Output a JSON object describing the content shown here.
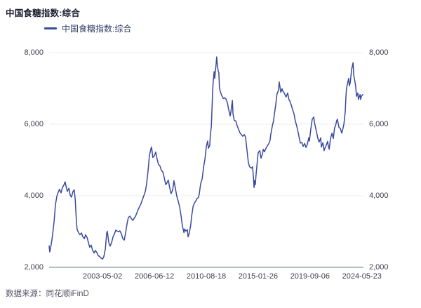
{
  "header": {
    "title": "中国食糖指数:综合"
  },
  "legend": {
    "label": "中国食糖指数:综合"
  },
  "footer": {
    "source": "数据来源：同花顺iFinD"
  },
  "chart_data": {
    "type": "line",
    "title": "中国食糖指数:综合",
    "grid": "horizontal",
    "legend_position": "top-left",
    "ylim": [
      2000,
      8000
    ],
    "colors": {
      "line": "#3A4A9E",
      "gridline": "#ececf1",
      "axis_line": "#b6bcc9",
      "tick_text": "#3d3d4f"
    },
    "y_ticks": [
      {
        "value": 2000,
        "label": "2,000"
      },
      {
        "value": 4000,
        "label": "4,000"
      },
      {
        "value": 6000,
        "label": "6,000"
      },
      {
        "value": 8000,
        "label": "8,000"
      }
    ],
    "x_ticks": [
      {
        "pct": 17.0,
        "label": "2003-05-02"
      },
      {
        "pct": 33.5,
        "label": "2006-06-12"
      },
      {
        "pct": 50.0,
        "label": "2010-08-18"
      },
      {
        "pct": 66.5,
        "label": "2015-01-26"
      },
      {
        "pct": 83.0,
        "label": "2019-09-06"
      },
      {
        "pct": 99.5,
        "label": "2024-05-23"
      }
    ],
    "series": [
      {
        "name": "中国食糖指数:综合",
        "color": "#3A4A9E",
        "points": [
          [
            0,
            2600
          ],
          [
            0.2,
            2430
          ],
          [
            0.7,
            2650
          ],
          [
            1.1,
            2900
          ],
          [
            1.6,
            3300
          ],
          [
            2,
            3750
          ],
          [
            2.5,
            4000
          ],
          [
            2.9,
            4100
          ],
          [
            3.3,
            4180
          ],
          [
            3.8,
            4080
          ],
          [
            4.2,
            4220
          ],
          [
            4.7,
            4300
          ],
          [
            5.1,
            4390
          ],
          [
            5.4,
            4260
          ],
          [
            5.8,
            4120
          ],
          [
            6.3,
            4210
          ],
          [
            6.7,
            4020
          ],
          [
            7.1,
            3960
          ],
          [
            7.6,
            4120
          ],
          [
            8,
            4160
          ],
          [
            8.3,
            3900
          ],
          [
            8.7,
            3250
          ],
          [
            8.9,
            3060
          ],
          [
            9.4,
            2960
          ],
          [
            9.8,
            2910
          ],
          [
            10.3,
            2960
          ],
          [
            10.7,
            2860
          ],
          [
            11.2,
            2800
          ],
          [
            11.6,
            2910
          ],
          [
            12.1,
            2830
          ],
          [
            12.5,
            2690
          ],
          [
            12.9,
            2560
          ],
          [
            13.4,
            2620
          ],
          [
            13.8,
            2480
          ],
          [
            14.3,
            2400
          ],
          [
            14.7,
            2470
          ],
          [
            15.2,
            2410
          ],
          [
            15.6,
            2330
          ],
          [
            16.1,
            2300
          ],
          [
            16.5,
            2260
          ],
          [
            17,
            2230
          ],
          [
            17.4,
            2300
          ],
          [
            17.9,
            2520
          ],
          [
            18.3,
            2950
          ],
          [
            18.5,
            3010
          ],
          [
            19,
            2690
          ],
          [
            19.4,
            2590
          ],
          [
            19.9,
            2700
          ],
          [
            20.3,
            2840
          ],
          [
            20.8,
            2940
          ],
          [
            21.2,
            3040
          ],
          [
            21.7,
            3010
          ],
          [
            22.1,
            2990
          ],
          [
            22.5,
            3020
          ],
          [
            23,
            2940
          ],
          [
            23.4,
            2810
          ],
          [
            23.9,
            2760
          ],
          [
            24.3,
            2950
          ],
          [
            24.8,
            3220
          ],
          [
            25.2,
            3390
          ],
          [
            25.7,
            3430
          ],
          [
            26.1,
            3370
          ],
          [
            26.6,
            3310
          ],
          [
            27,
            3360
          ],
          [
            27.5,
            3430
          ],
          [
            27.9,
            3520
          ],
          [
            28.3,
            3610
          ],
          [
            28.8,
            3700
          ],
          [
            29.2,
            3770
          ],
          [
            29.7,
            3900
          ],
          [
            30.1,
            3990
          ],
          [
            30.6,
            4120
          ],
          [
            31,
            4320
          ],
          [
            31.5,
            4720
          ],
          [
            31.9,
            5120
          ],
          [
            32.4,
            5320
          ],
          [
            32.6,
            5360
          ],
          [
            33,
            5070
          ],
          [
            33.5,
            5120
          ],
          [
            33.9,
            5220
          ],
          [
            34.4,
            5010
          ],
          [
            34.8,
            4870
          ],
          [
            35.3,
            4830
          ],
          [
            35.7,
            4710
          ],
          [
            36.2,
            4660
          ],
          [
            36.6,
            4510
          ],
          [
            37.1,
            4310
          ],
          [
            37.5,
            4360
          ],
          [
            37.9,
            4440
          ],
          [
            38.4,
            4210
          ],
          [
            38.8,
            4060
          ],
          [
            39.3,
            4160
          ],
          [
            39.7,
            4420
          ],
          [
            40.2,
            4190
          ],
          [
            40.6,
            3990
          ],
          [
            41.1,
            3840
          ],
          [
            41.5,
            3700
          ],
          [
            42,
            3420
          ],
          [
            42.4,
            3150
          ],
          [
            42.9,
            2970
          ],
          [
            43.1,
            3070
          ],
          [
            43.5,
            3010
          ],
          [
            44,
            3050
          ],
          [
            44.2,
            2850
          ],
          [
            44.6,
            2950
          ],
          [
            45.1,
            3210
          ],
          [
            45.3,
            3400
          ],
          [
            45.8,
            3700
          ],
          [
            46.2,
            3790
          ],
          [
            46.7,
            3860
          ],
          [
            47.1,
            3930
          ],
          [
            47.5,
            3950
          ],
          [
            47.8,
            4060
          ],
          [
            48.2,
            4330
          ],
          [
            48.7,
            4480
          ],
          [
            49.1,
            4780
          ],
          [
            49.6,
            5040
          ],
          [
            50,
            5360
          ],
          [
            50.4,
            5530
          ],
          [
            50.7,
            5330
          ],
          [
            51.1,
            5400
          ],
          [
            51.3,
            5700
          ],
          [
            51.6,
            5940
          ],
          [
            51.8,
            6400
          ],
          [
            52,
            6900
          ],
          [
            52.2,
            7200
          ],
          [
            52.5,
            7470
          ],
          [
            52.7,
            7280
          ],
          [
            52.9,
            7500
          ],
          [
            53.1,
            7650
          ],
          [
            53.3,
            7880
          ],
          [
            53.6,
            7600
          ],
          [
            53.8,
            7480
          ],
          [
            54,
            7440
          ],
          [
            54.2,
            7000
          ],
          [
            54.5,
            6900
          ],
          [
            54.9,
            6800
          ],
          [
            55.4,
            6720
          ],
          [
            55.8,
            6740
          ],
          [
            56.3,
            6700
          ],
          [
            56.7,
            6600
          ],
          [
            57.1,
            6420
          ],
          [
            57.6,
            6230
          ],
          [
            57.8,
            6320
          ],
          [
            58.3,
            6660
          ],
          [
            58.5,
            6280
          ],
          [
            58.9,
            6100
          ],
          [
            59.4,
            6090
          ],
          [
            59.8,
            5960
          ],
          [
            60.3,
            5850
          ],
          [
            60.7,
            5760
          ],
          [
            61.2,
            5700
          ],
          [
            61.6,
            5660
          ],
          [
            62.1,
            5710
          ],
          [
            62.5,
            5640
          ],
          [
            62.9,
            5310
          ],
          [
            63.4,
            4920
          ],
          [
            63.8,
            4810
          ],
          [
            64.3,
            4770
          ],
          [
            64.7,
            4810
          ],
          [
            65,
            4520
          ],
          [
            65.2,
            4230
          ],
          [
            65.4,
            4420
          ],
          [
            65.6,
            4310
          ],
          [
            65.8,
            4560
          ],
          [
            66.3,
            5020
          ],
          [
            66.5,
            5200
          ],
          [
            67,
            5260
          ],
          [
            67.4,
            5050
          ],
          [
            67.9,
            5180
          ],
          [
            68.1,
            5300
          ],
          [
            68.5,
            5230
          ],
          [
            69,
            5330
          ],
          [
            69.4,
            5390
          ],
          [
            69.9,
            5460
          ],
          [
            70.3,
            5550
          ],
          [
            70.5,
            5700
          ],
          [
            71,
            5950
          ],
          [
            71.4,
            6100
          ],
          [
            71.7,
            6300
          ],
          [
            72.1,
            6550
          ],
          [
            72.5,
            6850
          ],
          [
            73,
            6950
          ],
          [
            73.2,
            7180
          ],
          [
            73.7,
            6890
          ],
          [
            74.1,
            6990
          ],
          [
            74.3,
            6930
          ],
          [
            74.8,
            6870
          ],
          [
            75.2,
            6790
          ],
          [
            75.4,
            6760
          ],
          [
            75.9,
            6870
          ],
          [
            76.3,
            6690
          ],
          [
            76.6,
            6640
          ],
          [
            77,
            6540
          ],
          [
            77.5,
            6400
          ],
          [
            77.9,
            6290
          ],
          [
            78.3,
            6100
          ],
          [
            78.8,
            5940
          ],
          [
            79.2,
            5780
          ],
          [
            79.7,
            5560
          ],
          [
            79.9,
            5470
          ],
          [
            80.4,
            5490
          ],
          [
            80.8,
            5380
          ],
          [
            81.3,
            5460
          ],
          [
            81.7,
            5350
          ],
          [
            82.1,
            5420
          ],
          [
            82.6,
            5620
          ],
          [
            82.8,
            5530
          ],
          [
            83.3,
            5900
          ],
          [
            83.7,
            6140
          ],
          [
            84.2,
            6200
          ],
          [
            84.4,
            6050
          ],
          [
            84.8,
            5890
          ],
          [
            85.3,
            5690
          ],
          [
            85.5,
            5600
          ],
          [
            85.9,
            5500
          ],
          [
            86.4,
            5620
          ],
          [
            86.6,
            5360
          ],
          [
            87.1,
            5480
          ],
          [
            87.5,
            5260
          ],
          [
            87.7,
            5320
          ],
          [
            88.2,
            5420
          ],
          [
            88.6,
            5520
          ],
          [
            88.8,
            5400
          ],
          [
            89.1,
            5300
          ],
          [
            89.5,
            5600
          ],
          [
            90,
            5750
          ],
          [
            90.4,
            5600
          ],
          [
            90.8,
            5890
          ],
          [
            91.1,
            5950
          ],
          [
            91.5,
            6100
          ],
          [
            91.7,
            6140
          ],
          [
            92.2,
            5910
          ],
          [
            92.6,
            5890
          ],
          [
            93.1,
            5750
          ],
          [
            93.3,
            5810
          ],
          [
            93.8,
            6010
          ],
          [
            94.2,
            6340
          ],
          [
            94.4,
            6730
          ],
          [
            94.6,
            6990
          ],
          [
            94.9,
            7130
          ],
          [
            95.3,
            7280
          ],
          [
            95.5,
            7070
          ],
          [
            95.8,
            7160
          ],
          [
            96.2,
            7520
          ],
          [
            96.7,
            7720
          ],
          [
            96.9,
            7380
          ],
          [
            97.3,
            7180
          ],
          [
            97.5,
            7070
          ],
          [
            97.8,
            6780
          ],
          [
            98.2,
            6870
          ],
          [
            98.4,
            6690
          ],
          [
            98.9,
            6830
          ],
          [
            99.1,
            6690
          ],
          [
            99.3,
            6780
          ],
          [
            99.8,
            6830
          ]
        ]
      }
    ],
    "source_note": "数据来源：同花顺iFinD"
  }
}
